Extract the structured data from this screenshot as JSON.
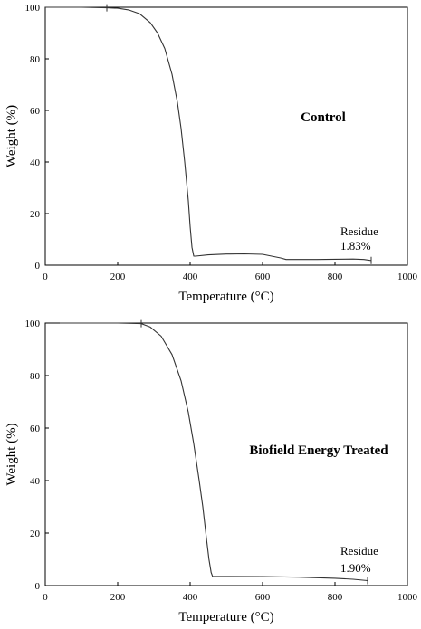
{
  "chart_data": [
    {
      "type": "line",
      "title": "Control",
      "xlabel": "Temperature (°C)",
      "ylabel": "Weight (%)",
      "xlim": [
        0,
        1000
      ],
      "ylim": [
        0,
        100
      ],
      "x_ticks": [
        "0",
        "200",
        "400",
        "600",
        "800",
        "1000"
      ],
      "y_ticks": [
        "0",
        "20",
        "40",
        "60",
        "80",
        "100"
      ],
      "grid": false,
      "series": [
        {
          "x": [
            0,
            50,
            100,
            170,
            200,
            230,
            260,
            290,
            310,
            330,
            350,
            365,
            375,
            385,
            395,
            400,
            405,
            410,
            415,
            450,
            500,
            550,
            600,
            650,
            665,
            700,
            750,
            800,
            850,
            880,
            895,
            900
          ],
          "y": [
            100,
            100,
            100,
            99.8,
            99.6,
            99,
            97.5,
            94,
            90,
            84,
            74,
            63,
            53,
            40,
            25,
            15,
            7,
            3.5,
            3.5,
            4,
            4.3,
            4.4,
            4.2,
            2.8,
            2.2,
            2.2,
            2.2,
            2.3,
            2.4,
            2.2,
            1.9,
            1.83
          ]
        }
      ],
      "annotations": [
        {
          "text": "Residue",
          "x": 880,
          "y": 12
        },
        {
          "text": "1.83%",
          "x": 880,
          "y": 6.5
        }
      ],
      "markers_x": [
        170,
        900
      ]
    },
    {
      "type": "line",
      "title": "Biofield Energy Treated",
      "xlabel": "Temperature (°C)",
      "ylabel": "Weight (%)",
      "xlim": [
        0,
        1000
      ],
      "ylim": [
        0,
        100
      ],
      "x_ticks": [
        "0",
        "200",
        "400",
        "600",
        "800",
        "1000"
      ],
      "y_ticks": [
        "0",
        "20",
        "40",
        "60",
        "80",
        "100"
      ],
      "grid": false,
      "series": [
        {
          "x": [
            40,
            100,
            200,
            265,
            290,
            320,
            350,
            375,
            395,
            410,
            425,
            435,
            445,
            452,
            458,
            462,
            470,
            500,
            600,
            700,
            800,
            850,
            890
          ],
          "y": [
            100,
            100,
            100,
            99.8,
            98.5,
            95,
            88,
            78,
            66,
            54,
            40,
            30,
            18,
            10,
            5,
            3.5,
            3.5,
            3.5,
            3.4,
            3.2,
            2.8,
            2.4,
            1.9
          ]
        }
      ],
      "annotations": [
        {
          "text": "Residue",
          "x": 880,
          "y": 12
        },
        {
          "text": "1.90%",
          "x": 880,
          "y": 6.5
        }
      ],
      "markers_x": [
        265,
        890
      ]
    }
  ]
}
